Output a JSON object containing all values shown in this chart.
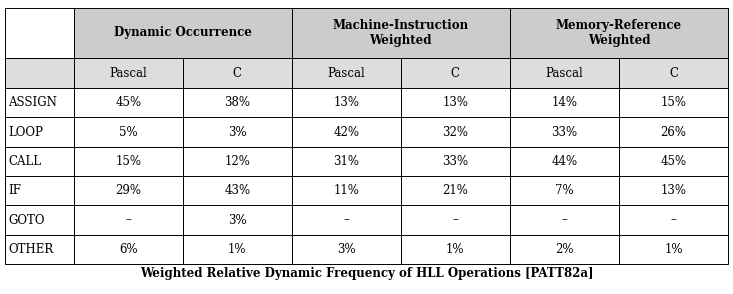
{
  "title": "Weighted Relative Dynamic Frequency of HLL Operations [PATT82a]",
  "col_groups": [
    {
      "label": "Dynamic Occurrence",
      "cols": [
        1,
        2
      ]
    },
    {
      "label": "Machine-Instruction\nWeighted",
      "cols": [
        3,
        4
      ]
    },
    {
      "label": "Memory-Reference\nWeighted",
      "cols": [
        5,
        6
      ]
    }
  ],
  "sub_headers": [
    "Pascal",
    "C",
    "Pascal",
    "C",
    "Pascal",
    "C"
  ],
  "row_labels": [
    "ASSIGN",
    "LOOP",
    "CALL",
    "IF",
    "GOTO",
    "OTHER"
  ],
  "data": [
    [
      "45%",
      "38%",
      "13%",
      "13%",
      "14%",
      "15%"
    ],
    [
      "5%",
      "3%",
      "42%",
      "32%",
      "33%",
      "26%"
    ],
    [
      "15%",
      "12%",
      "31%",
      "33%",
      "44%",
      "45%"
    ],
    [
      "29%",
      "43%",
      "11%",
      "21%",
      "7%",
      "13%"
    ],
    [
      "–",
      "3%",
      "–",
      "–",
      "–",
      "–"
    ],
    [
      "6%",
      "1%",
      "3%",
      "1%",
      "2%",
      "1%"
    ]
  ],
  "header_bg": "#cccccc",
  "subheader_bg": "#dddddd",
  "white_bg": "#ffffff",
  "border_color": "#000000",
  "text_color": "#000000",
  "header_fontsize": 8.5,
  "subheader_fontsize": 8.5,
  "data_fontsize": 8.5,
  "title_fontsize": 8.5
}
